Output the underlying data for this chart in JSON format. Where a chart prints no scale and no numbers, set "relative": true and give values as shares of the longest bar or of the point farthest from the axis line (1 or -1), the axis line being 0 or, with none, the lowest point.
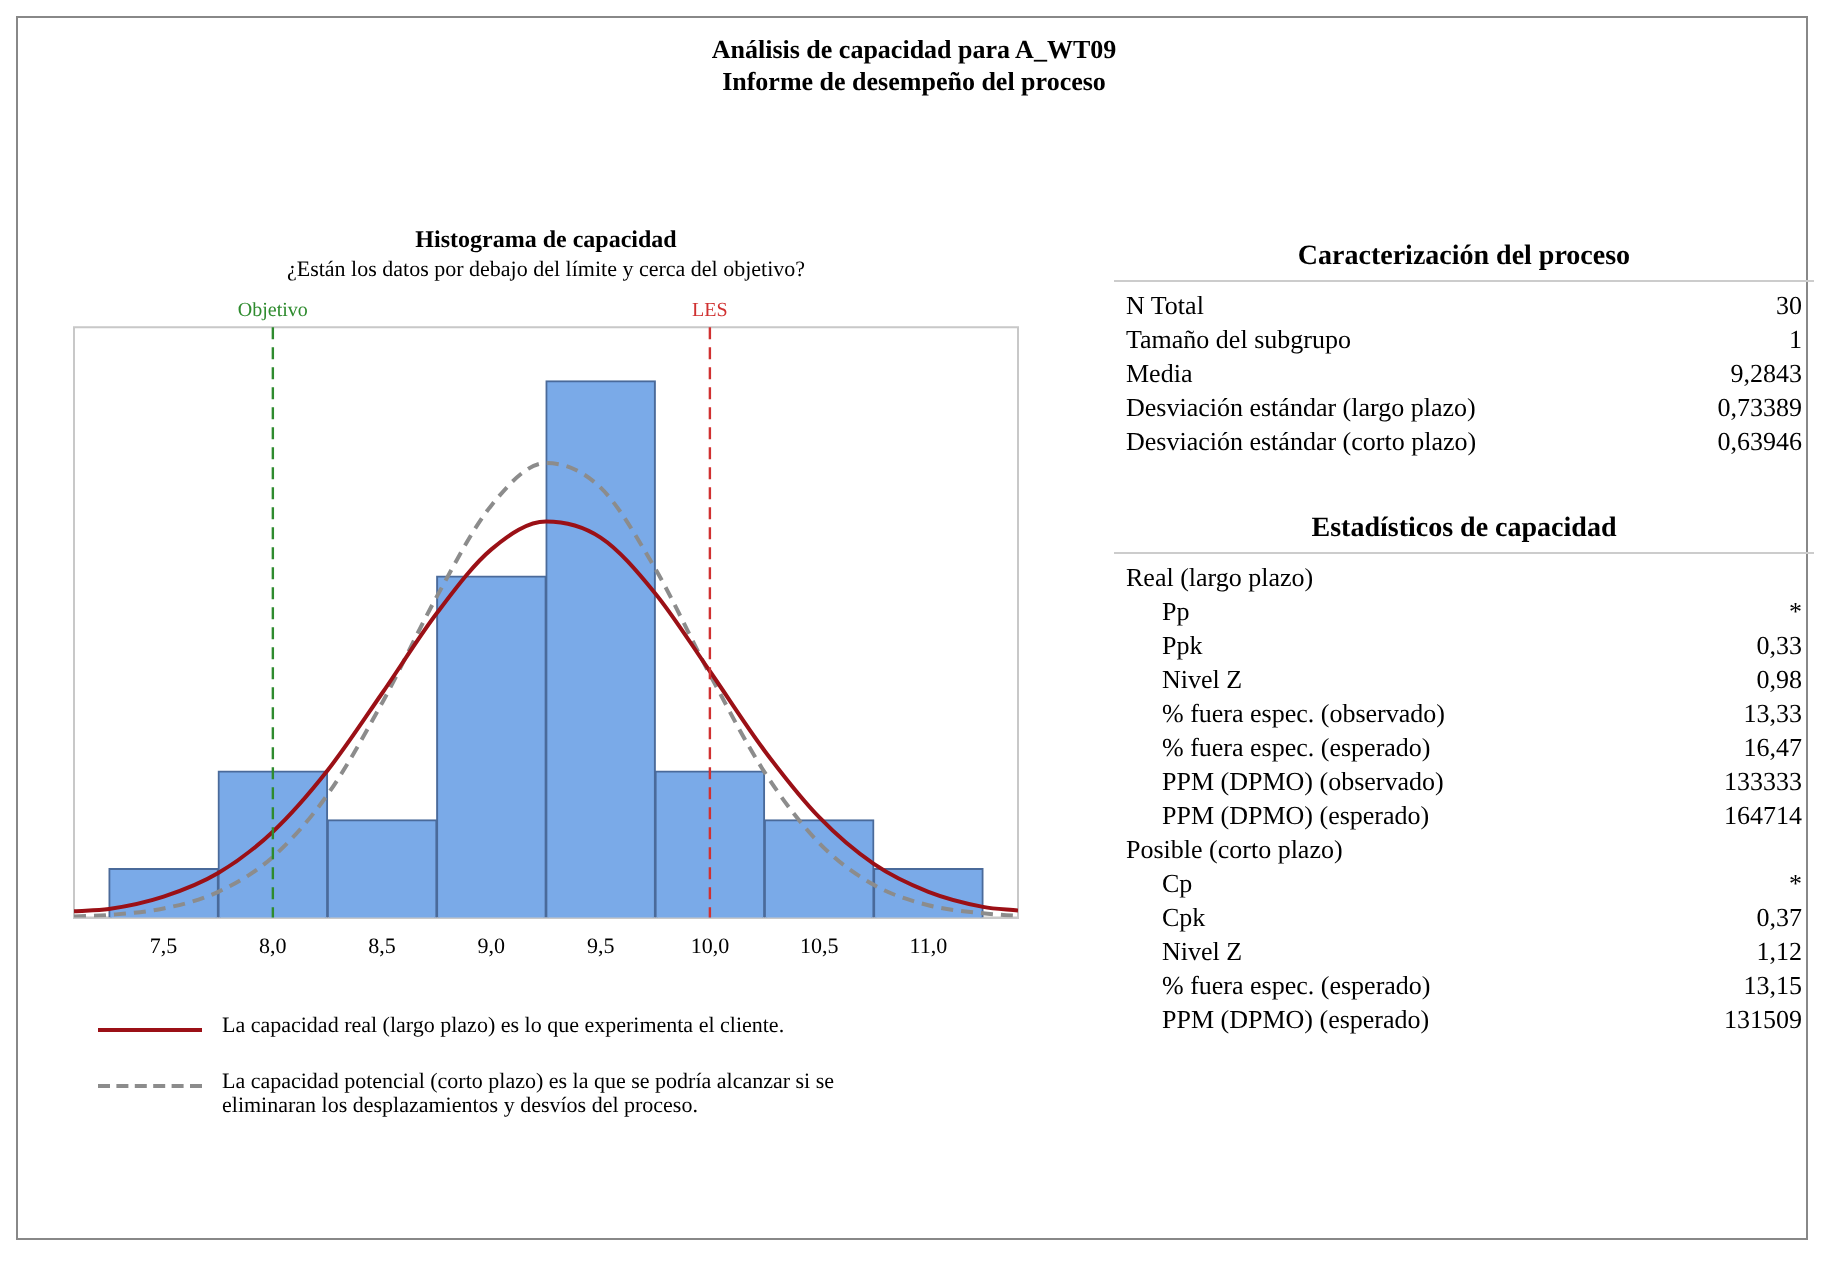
{
  "chart_data": [
    {
      "type": "histogram",
      "title": "Histograma de capacidad",
      "subtitle": "¿Están los datos por debajo del límite y cerca del objetivo?",
      "annotations": [
        "Análisis de capacidad para A_WT09",
        "Informe de desempeño del proceso"
      ],
      "bins": [
        7.25,
        7.75,
        8.25,
        8.75,
        9.25,
        9.75,
        10.25,
        10.75,
        11.25
      ],
      "values": [
        0.091,
        0.273,
        0.182,
        0.636,
        1,
        0.273,
        0.182,
        0.091
      ],
      "color": "#7aaae8",
      "relative": true,
      "xlim": [
        7.09,
        11.41
      ],
      "xticks": [
        {
          "value": 7.5,
          "label": "7,5"
        },
        {
          "value": 8,
          "label": "8,0"
        },
        {
          "value": 8.5,
          "label": "8,5"
        },
        {
          "value": 9,
          "label": "9,0"
        },
        {
          "value": 9.5,
          "label": "9,5"
        },
        {
          "value": 10,
          "label": "10,0"
        },
        {
          "value": 10.5,
          "label": "10,5"
        },
        {
          "value": 11,
          "label": "11,0"
        }
      ],
      "legend": "bottom",
      "series": [
        {
          "name": "La capacidad real (largo plazo) es lo que experimenta el cliente.",
          "type": "line",
          "color": "#9b1016",
          "line_style": "solid",
          "marker": "none",
          "x": [
            7.09,
            7.25,
            7.5,
            7.75,
            8,
            8.25,
            8.5,
            8.75,
            9,
            9.25,
            9.5,
            9.75,
            10,
            10.25,
            10.5,
            10.75,
            11,
            11.25,
            11.41
          ],
          "values": [
            0.012,
            0.016,
            0.039,
            0.083,
            0.16,
            0.274,
            0.418,
            0.567,
            0.686,
            0.738,
            0.708,
            0.604,
            0.459,
            0.311,
            0.187,
            0.1,
            0.048,
            0.02,
            0.013
          ]
        },
        {
          "name": "La capacidad potencial (corto plazo) es la que se podría alcanzar si se eliminaran los desplazamientos y desvíos del proceso.",
          "type": "line",
          "color": "#8c8c8c",
          "line_style": "dashed",
          "marker": "none",
          "x": [
            7.09,
            7.25,
            7.5,
            7.75,
            8,
            8.25,
            8.5,
            8.75,
            9,
            9.25,
            9.5,
            9.75,
            10,
            10.25,
            10.5,
            10.75,
            11,
            11.25,
            11.41
          ],
          "values": [
            0.002,
            0.005,
            0.017,
            0.048,
            0.113,
            0.229,
            0.4,
            0.598,
            0.768,
            0.847,
            0.801,
            0.65,
            0.453,
            0.271,
            0.139,
            0.061,
            0.023,
            0.008,
            0.003
          ]
        }
      ],
      "ref_lines": [
        {
          "axis": "x",
          "value": 8,
          "label": "Objetivo",
          "color": "#2e8b2e",
          "line_style": "dashed"
        },
        {
          "axis": "x",
          "value": 10,
          "label": "LES",
          "color": "#d03030",
          "line_style": "dashed"
        }
      ]
    },
    {
      "type": "other",
      "title": "Caracterización del proceso",
      "categories": [
        "N Total",
        "Tamaño del subgrupo",
        "Media",
        "Desviación estándar (largo plazo)",
        "Desviación estándar (corto plazo)"
      ],
      "value_labels": [
        "30",
        "1",
        "9,2843",
        "0,73389",
        "0,63946"
      ]
    },
    {
      "type": "other",
      "title": "Estadísticos de capacidad",
      "categories": [
        "Real (largo plazo)",
        "Pp",
        "Ppk",
        "Nivel Z",
        "% fuera espec. (observado)",
        "% fuera espec. (esperado)",
        "PPM (DPMO) (observado)",
        "PPM (DPMO) (esperado)",
        "Posible (corto plazo)",
        "Cp",
        "Cpk",
        "Nivel Z",
        "% fuera espec. (esperado)",
        "PPM (DPMO) (esperado)"
      ],
      "value_labels": [
        null,
        "*",
        "0,33",
        "0,98",
        "13,33",
        "16,47",
        "133333",
        "164714",
        null,
        "*",
        "0,37",
        "1,12",
        "13,15",
        "131509"
      ]
    }
  ]
}
